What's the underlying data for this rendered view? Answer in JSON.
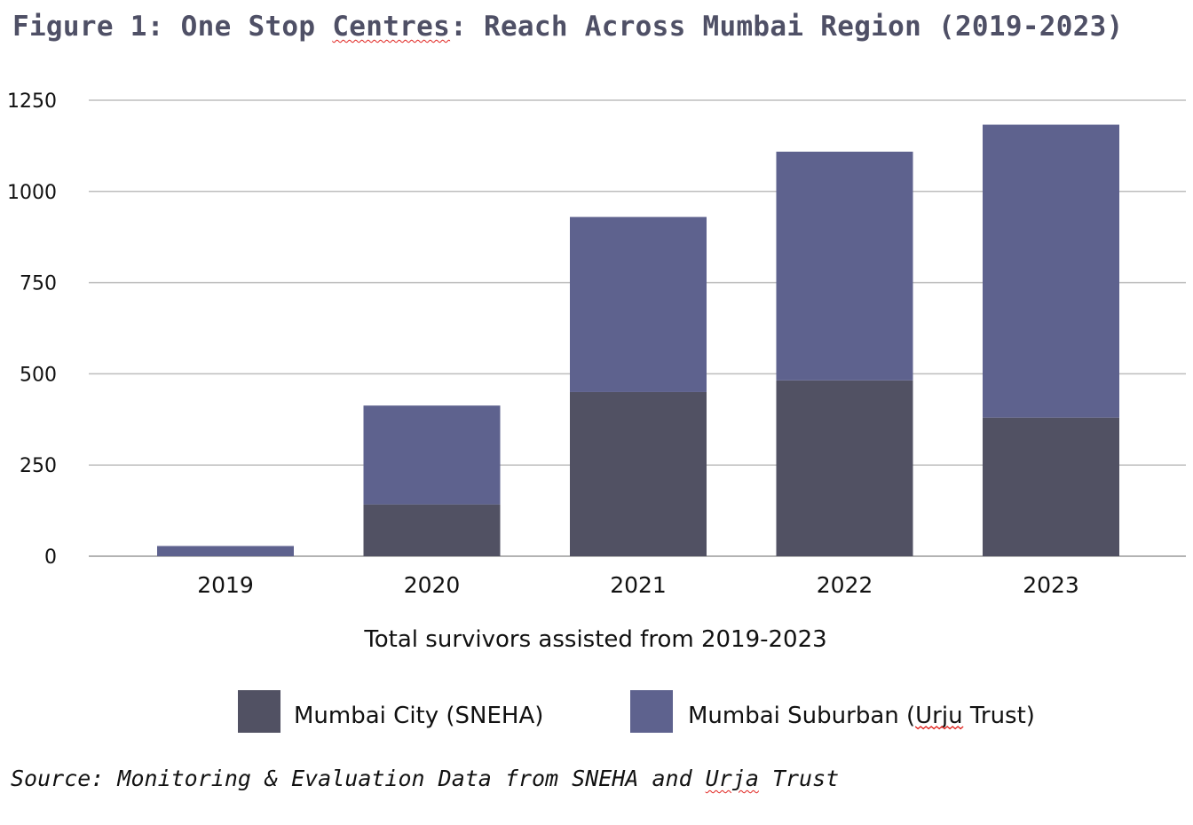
{
  "chart_data": {
    "type": "bar",
    "stacked": true,
    "title": "Figure 1: One Stop Centres: Reach Across Mumbai Region (2019-2023)",
    "categories": [
      "2019",
      "2020",
      "2021",
      "2022",
      "2023"
    ],
    "series": [
      {
        "name": "Mumbai City (SNEHA)",
        "color": "#515163",
        "values": [
          0,
          142,
          450,
          482,
          380
        ]
      },
      {
        "name": "Mumbai Suburban (Urju Trust)",
        "color": "#5e628e",
        "values": [
          28,
          271,
          480,
          627,
          803
        ]
      }
    ],
    "xlabel": "Total survivors assisted from 2019-2023",
    "ylabel": "",
    "ylim": [
      0,
      1250
    ],
    "yticks": [
      "0",
      "250",
      "500",
      "750",
      "1000",
      "1250"
    ],
    "grid": true,
    "legend_position": "bottom",
    "source": "Source: Monitoring & Evaluation Data from SNEHA and Urja Trust"
  },
  "title_parts": {
    "a": "Figure 1: One Stop ",
    "b": "Centres",
    "c": ": Reach Across Mumbai Region (2019-2023)"
  },
  "legend_parts": {
    "city": "Mumbai City (SNEHA)",
    "suburban_a": "Mumbai Suburban (",
    "suburban_b": "Urju",
    "suburban_c": " Trust)"
  },
  "source_parts": {
    "a": "Source: Monitoring & Evaluation Data from SNEHA and ",
    "b": "Urja",
    "c": " Trust"
  },
  "colors": {
    "grid": "#bdbdbd",
    "title": "#4f5066",
    "spellcheck": "#e0201b"
  }
}
